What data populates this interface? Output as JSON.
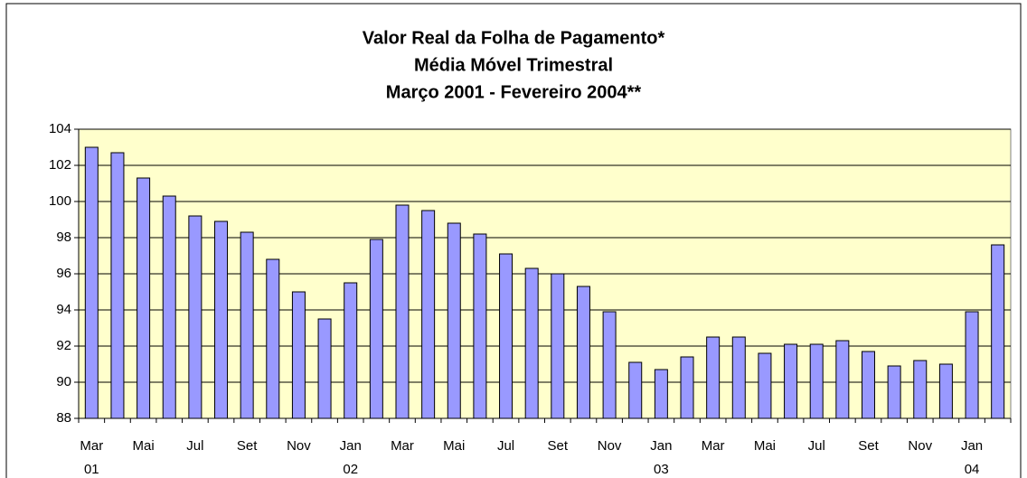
{
  "chart_data": {
    "type": "bar",
    "title_lines": [
      "Valor Real da Folha de Pagamento*",
      "Média Móvel Trimestral",
      "Março 2001 - Fevereiro 2004**"
    ],
    "categories": [
      "Mar",
      null,
      "Mai",
      null,
      "Jul",
      null,
      "Set",
      null,
      "Nov",
      null,
      "Jan",
      null,
      "Mar",
      null,
      "Mai",
      null,
      "Jul",
      null,
      "Set",
      null,
      "Nov",
      null,
      "Jan",
      null,
      "Mar",
      null,
      "Mai",
      null,
      "Jul",
      null,
      "Set",
      null,
      "Nov",
      null,
      "Jan",
      null
    ],
    "x_year_labels": [
      "01",
      null,
      null,
      null,
      null,
      null,
      null,
      null,
      null,
      null,
      "02",
      null,
      null,
      null,
      null,
      null,
      null,
      null,
      null,
      null,
      null,
      null,
      "03",
      null,
      null,
      null,
      null,
      null,
      null,
      null,
      null,
      null,
      null,
      null,
      "04",
      null
    ],
    "values": [
      103.0,
      102.7,
      101.3,
      100.3,
      99.2,
      98.9,
      98.3,
      96.8,
      95.0,
      93.5,
      95.5,
      97.9,
      99.8,
      99.5,
      98.8,
      98.2,
      97.1,
      96.3,
      96.0,
      95.3,
      93.9,
      91.1,
      90.7,
      91.4,
      92.5,
      92.5,
      91.6,
      92.1,
      92.1,
      92.3,
      91.7,
      90.9,
      91.2,
      91.0,
      93.9,
      97.6
    ],
    "color": "#9999ff",
    "plot_background": "#ffffcc",
    "ylim": [
      88,
      104
    ],
    "yticks": [
      88,
      90,
      92,
      94,
      96,
      98,
      100,
      102,
      104
    ],
    "grid": true
  }
}
